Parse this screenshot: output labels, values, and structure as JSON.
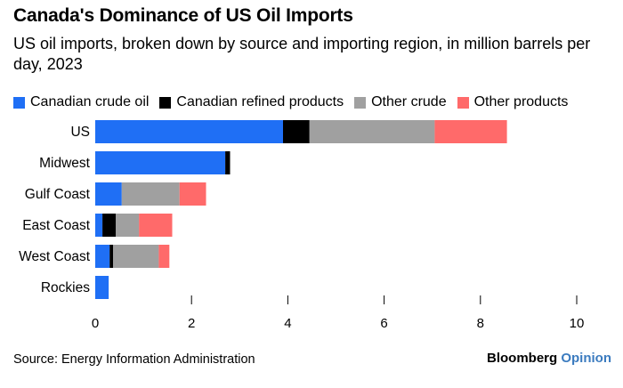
{
  "header": {
    "title": "Canada's Dominance of US Oil Imports",
    "subtitle": "US oil imports, broken down by source and importing region, in million barrels per day, 2023"
  },
  "footer": {
    "source": "Source: Energy Information Administration",
    "brand_primary": "Bloomberg",
    "brand_secondary": "Opinion"
  },
  "chart_data": {
    "type": "bar",
    "orientation": "horizontal",
    "stacked": true,
    "title": "Canada's Dominance of US Oil Imports",
    "subtitle": "US oil imports, broken down by source and importing region, in million barrels per day, 2023",
    "categories": [
      "US",
      "Midwest",
      "Gulf Coast",
      "East Coast",
      "West Coast",
      "Rockies"
    ],
    "series": [
      {
        "name": "Canadian crude oil",
        "color": "#1f6ff5",
        "values": [
          3.9,
          2.7,
          0.55,
          0.15,
          0.3,
          0.28
        ]
      },
      {
        "name": "Canadian refined products",
        "color": "#000000",
        "values": [
          0.55,
          0.1,
          0.0,
          0.28,
          0.07,
          0.0
        ]
      },
      {
        "name": "Other crude",
        "color": "#a0a0a0",
        "values": [
          2.6,
          0.0,
          1.2,
          0.48,
          0.95,
          0.0
        ]
      },
      {
        "name": "Other products",
        "color": "#ff6a6a",
        "values": [
          1.5,
          0.0,
          0.55,
          0.69,
          0.22,
          0.0
        ]
      }
    ],
    "xlim": [
      0,
      10
    ],
    "x_ticks": [
      "0",
      "2",
      "4",
      "6",
      "8",
      "10"
    ],
    "grid": false,
    "legend_position": "top"
  }
}
